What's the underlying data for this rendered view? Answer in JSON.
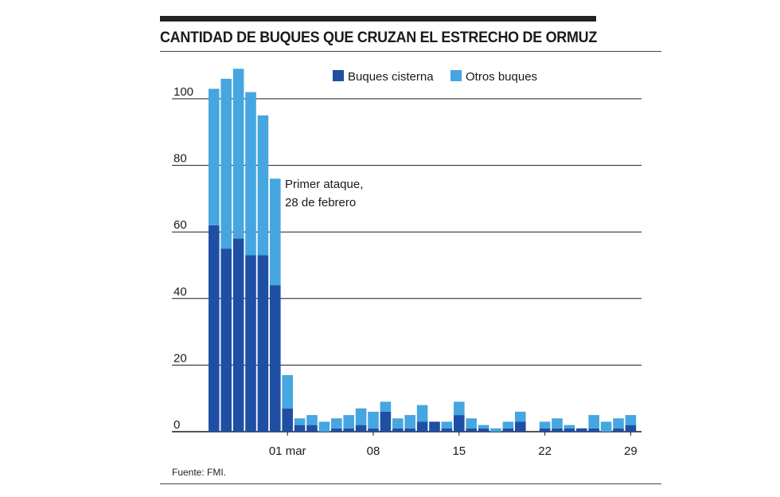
{
  "title": "CANTIDAD DE BUQUES QUE CRUZAN EL ESTRECHO DE ORMUZ",
  "source": "Fuente: FMI.",
  "colors": {
    "tankers": "#1f4fa5",
    "others": "#45a6e0",
    "grid": "#1a1a1a",
    "rule": "#222222"
  },
  "chart_data": {
    "type": "bar",
    "stacked": true,
    "x_unit": "day",
    "x_start_date": "2026-02-23",
    "categories": [
      "2026-02-23",
      "2026-02-24",
      "2026-02-25",
      "2026-02-26",
      "2026-02-27",
      "2026-02-28",
      "2026-03-01",
      "2026-03-02",
      "2026-03-03",
      "2026-03-04",
      "2026-03-05",
      "2026-03-06",
      "2026-03-07",
      "2026-03-08",
      "2026-03-09",
      "2026-03-10",
      "2026-03-11",
      "2026-03-12",
      "2026-03-13",
      "2026-03-14",
      "2026-03-15",
      "2026-03-16",
      "2026-03-17",
      "2026-03-18",
      "2026-03-19",
      "2026-03-20",
      "2026-03-21",
      "2026-03-22",
      "2026-03-23",
      "2026-03-24",
      "2026-03-25",
      "2026-03-26",
      "2026-03-27",
      "2026-03-28",
      "2026-03-29"
    ],
    "series": [
      {
        "name": "Buques cisterna",
        "values": [
          62,
          55,
          58,
          53,
          53,
          44,
          7,
          2,
          2,
          0,
          1,
          1,
          2,
          1,
          6,
          1,
          1,
          3,
          3,
          1,
          5,
          1,
          1,
          0,
          1,
          3,
          0,
          1,
          1,
          1,
          1,
          1,
          0,
          1,
          2
        ]
      },
      {
        "name": "Otros buques",
        "values": [
          41,
          51,
          51,
          49,
          42,
          32,
          10,
          2,
          3,
          3,
          3,
          4,
          5,
          5,
          3,
          3,
          4,
          5,
          0,
          2,
          4,
          3,
          1,
          1,
          2,
          3,
          0,
          2,
          3,
          1,
          0,
          4,
          3,
          3,
          3
        ]
      }
    ],
    "legend": [
      "Buques cisterna",
      "Otros buques"
    ],
    "legend_position": "top-center",
    "x_tick_labels": [
      {
        "date": "2026-03-01",
        "label": "01 mar"
      },
      {
        "date": "2026-03-08",
        "label": "08"
      },
      {
        "date": "2026-03-15",
        "label": "15"
      },
      {
        "date": "2026-03-22",
        "label": "22"
      },
      {
        "date": "2026-03-29",
        "label": "29"
      }
    ],
    "y_ticks": [
      0,
      20,
      40,
      60,
      80,
      100
    ],
    "ylim": [
      0,
      110
    ],
    "grid": "horizontal",
    "annotation": {
      "date": "2026-02-28",
      "lines": [
        "Primer ataque,",
        "28 de febrero"
      ]
    }
  }
}
